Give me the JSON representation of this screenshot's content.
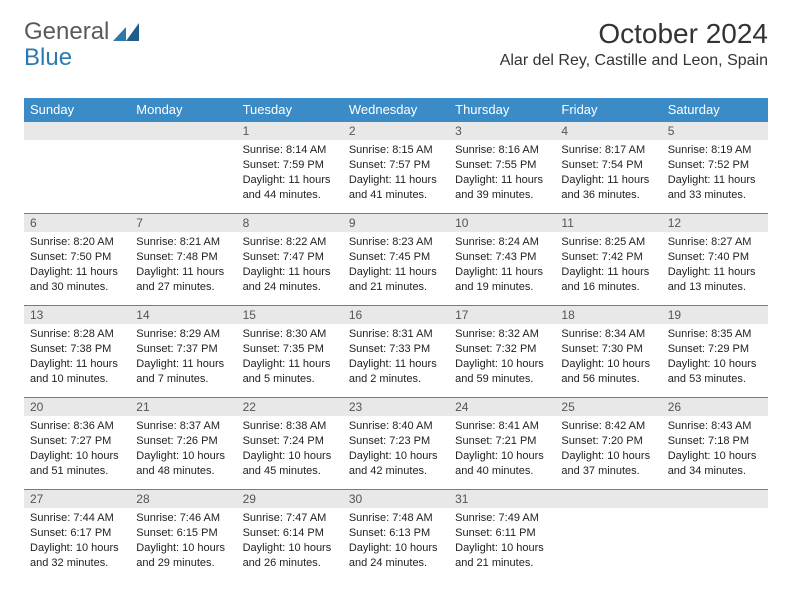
{
  "logo": {
    "part1": "General",
    "part2": "Blue"
  },
  "title": "October 2024",
  "location": "Alar del Rey, Castille and Leon, Spain",
  "colors": {
    "header_bg": "#3b8bc6",
    "header_fg": "#ffffff",
    "daynum_bg": "#e8e8e8",
    "border": "#3b8bc6",
    "logo_gray": "#5a5a5a",
    "logo_blue": "#2a7ab0"
  },
  "weekdays": [
    "Sunday",
    "Monday",
    "Tuesday",
    "Wednesday",
    "Thursday",
    "Friday",
    "Saturday"
  ],
  "weeks": [
    [
      {
        "num": "",
        "sunrise": "",
        "sunset": "",
        "daylight": ""
      },
      {
        "num": "",
        "sunrise": "",
        "sunset": "",
        "daylight": ""
      },
      {
        "num": "1",
        "sunrise": "Sunrise: 8:14 AM",
        "sunset": "Sunset: 7:59 PM",
        "daylight": "Daylight: 11 hours and 44 minutes."
      },
      {
        "num": "2",
        "sunrise": "Sunrise: 8:15 AM",
        "sunset": "Sunset: 7:57 PM",
        "daylight": "Daylight: 11 hours and 41 minutes."
      },
      {
        "num": "3",
        "sunrise": "Sunrise: 8:16 AM",
        "sunset": "Sunset: 7:55 PM",
        "daylight": "Daylight: 11 hours and 39 minutes."
      },
      {
        "num": "4",
        "sunrise": "Sunrise: 8:17 AM",
        "sunset": "Sunset: 7:54 PM",
        "daylight": "Daylight: 11 hours and 36 minutes."
      },
      {
        "num": "5",
        "sunrise": "Sunrise: 8:19 AM",
        "sunset": "Sunset: 7:52 PM",
        "daylight": "Daylight: 11 hours and 33 minutes."
      }
    ],
    [
      {
        "num": "6",
        "sunrise": "Sunrise: 8:20 AM",
        "sunset": "Sunset: 7:50 PM",
        "daylight": "Daylight: 11 hours and 30 minutes."
      },
      {
        "num": "7",
        "sunrise": "Sunrise: 8:21 AM",
        "sunset": "Sunset: 7:48 PM",
        "daylight": "Daylight: 11 hours and 27 minutes."
      },
      {
        "num": "8",
        "sunrise": "Sunrise: 8:22 AM",
        "sunset": "Sunset: 7:47 PM",
        "daylight": "Daylight: 11 hours and 24 minutes."
      },
      {
        "num": "9",
        "sunrise": "Sunrise: 8:23 AM",
        "sunset": "Sunset: 7:45 PM",
        "daylight": "Daylight: 11 hours and 21 minutes."
      },
      {
        "num": "10",
        "sunrise": "Sunrise: 8:24 AM",
        "sunset": "Sunset: 7:43 PM",
        "daylight": "Daylight: 11 hours and 19 minutes."
      },
      {
        "num": "11",
        "sunrise": "Sunrise: 8:25 AM",
        "sunset": "Sunset: 7:42 PM",
        "daylight": "Daylight: 11 hours and 16 minutes."
      },
      {
        "num": "12",
        "sunrise": "Sunrise: 8:27 AM",
        "sunset": "Sunset: 7:40 PM",
        "daylight": "Daylight: 11 hours and 13 minutes."
      }
    ],
    [
      {
        "num": "13",
        "sunrise": "Sunrise: 8:28 AM",
        "sunset": "Sunset: 7:38 PM",
        "daylight": "Daylight: 11 hours and 10 minutes."
      },
      {
        "num": "14",
        "sunrise": "Sunrise: 8:29 AM",
        "sunset": "Sunset: 7:37 PM",
        "daylight": "Daylight: 11 hours and 7 minutes."
      },
      {
        "num": "15",
        "sunrise": "Sunrise: 8:30 AM",
        "sunset": "Sunset: 7:35 PM",
        "daylight": "Daylight: 11 hours and 5 minutes."
      },
      {
        "num": "16",
        "sunrise": "Sunrise: 8:31 AM",
        "sunset": "Sunset: 7:33 PM",
        "daylight": "Daylight: 11 hours and 2 minutes."
      },
      {
        "num": "17",
        "sunrise": "Sunrise: 8:32 AM",
        "sunset": "Sunset: 7:32 PM",
        "daylight": "Daylight: 10 hours and 59 minutes."
      },
      {
        "num": "18",
        "sunrise": "Sunrise: 8:34 AM",
        "sunset": "Sunset: 7:30 PM",
        "daylight": "Daylight: 10 hours and 56 minutes."
      },
      {
        "num": "19",
        "sunrise": "Sunrise: 8:35 AM",
        "sunset": "Sunset: 7:29 PM",
        "daylight": "Daylight: 10 hours and 53 minutes."
      }
    ],
    [
      {
        "num": "20",
        "sunrise": "Sunrise: 8:36 AM",
        "sunset": "Sunset: 7:27 PM",
        "daylight": "Daylight: 10 hours and 51 minutes."
      },
      {
        "num": "21",
        "sunrise": "Sunrise: 8:37 AM",
        "sunset": "Sunset: 7:26 PM",
        "daylight": "Daylight: 10 hours and 48 minutes."
      },
      {
        "num": "22",
        "sunrise": "Sunrise: 8:38 AM",
        "sunset": "Sunset: 7:24 PM",
        "daylight": "Daylight: 10 hours and 45 minutes."
      },
      {
        "num": "23",
        "sunrise": "Sunrise: 8:40 AM",
        "sunset": "Sunset: 7:23 PM",
        "daylight": "Daylight: 10 hours and 42 minutes."
      },
      {
        "num": "24",
        "sunrise": "Sunrise: 8:41 AM",
        "sunset": "Sunset: 7:21 PM",
        "daylight": "Daylight: 10 hours and 40 minutes."
      },
      {
        "num": "25",
        "sunrise": "Sunrise: 8:42 AM",
        "sunset": "Sunset: 7:20 PM",
        "daylight": "Daylight: 10 hours and 37 minutes."
      },
      {
        "num": "26",
        "sunrise": "Sunrise: 8:43 AM",
        "sunset": "Sunset: 7:18 PM",
        "daylight": "Daylight: 10 hours and 34 minutes."
      }
    ],
    [
      {
        "num": "27",
        "sunrise": "Sunrise: 7:44 AM",
        "sunset": "Sunset: 6:17 PM",
        "daylight": "Daylight: 10 hours and 32 minutes."
      },
      {
        "num": "28",
        "sunrise": "Sunrise: 7:46 AM",
        "sunset": "Sunset: 6:15 PM",
        "daylight": "Daylight: 10 hours and 29 minutes."
      },
      {
        "num": "29",
        "sunrise": "Sunrise: 7:47 AM",
        "sunset": "Sunset: 6:14 PM",
        "daylight": "Daylight: 10 hours and 26 minutes."
      },
      {
        "num": "30",
        "sunrise": "Sunrise: 7:48 AM",
        "sunset": "Sunset: 6:13 PM",
        "daylight": "Daylight: 10 hours and 24 minutes."
      },
      {
        "num": "31",
        "sunrise": "Sunrise: 7:49 AM",
        "sunset": "Sunset: 6:11 PM",
        "daylight": "Daylight: 10 hours and 21 minutes."
      },
      {
        "num": "",
        "sunrise": "",
        "sunset": "",
        "daylight": ""
      },
      {
        "num": "",
        "sunrise": "",
        "sunset": "",
        "daylight": ""
      }
    ]
  ]
}
